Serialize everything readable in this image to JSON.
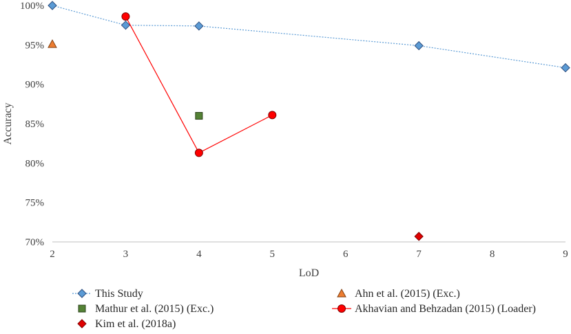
{
  "chart_data": {
    "type": "scatter",
    "title": "",
    "xlabel": "LoD",
    "ylabel": "Accuracy",
    "xlim": [
      2,
      9
    ],
    "ylim": [
      70,
      100
    ],
    "x_ticks": [
      "2",
      "3",
      "4",
      "5",
      "6",
      "7",
      "8",
      "9"
    ],
    "y_ticks": [
      "70%",
      "75%",
      "80%",
      "85%",
      "90%",
      "95%",
      "100%"
    ],
    "grid": false,
    "legend_position": "bottom",
    "series": [
      {
        "name": "This Study",
        "marker": "diamond",
        "line": "dotted",
        "color": "#5b9bd5",
        "edge": "#2e4e7e",
        "x": [
          2,
          3,
          4,
          7,
          9
        ],
        "y": [
          100,
          97.5,
          97.4,
          94.9,
          92.1
        ]
      },
      {
        "name": "Ahn et al. (2015) (Exc.)",
        "marker": "triangle",
        "line": "none",
        "color": "#ed7d31",
        "edge": "#7f3f10",
        "x": [
          2
        ],
        "y": [
          95.1
        ]
      },
      {
        "name": "Mathur et al. (2015) (Exc.)",
        "marker": "square",
        "line": "none",
        "color": "#548235",
        "edge": "#2a4019",
        "x": [
          4
        ],
        "y": [
          86
        ]
      },
      {
        "name": "Akhavian and Behzadan (2015) (Loader)",
        "marker": "circle",
        "line": "solid",
        "color": "#ff0000",
        "edge": "#7f0000",
        "x": [
          3,
          4,
          5
        ],
        "y": [
          98.6,
          81.3,
          86.1
        ]
      },
      {
        "name": "Kim et al. (2018a)",
        "marker": "diamond",
        "line": "none",
        "color": "#e00000",
        "edge": "#7f0000",
        "x": [
          7
        ],
        "y": [
          70.7
        ]
      }
    ]
  }
}
